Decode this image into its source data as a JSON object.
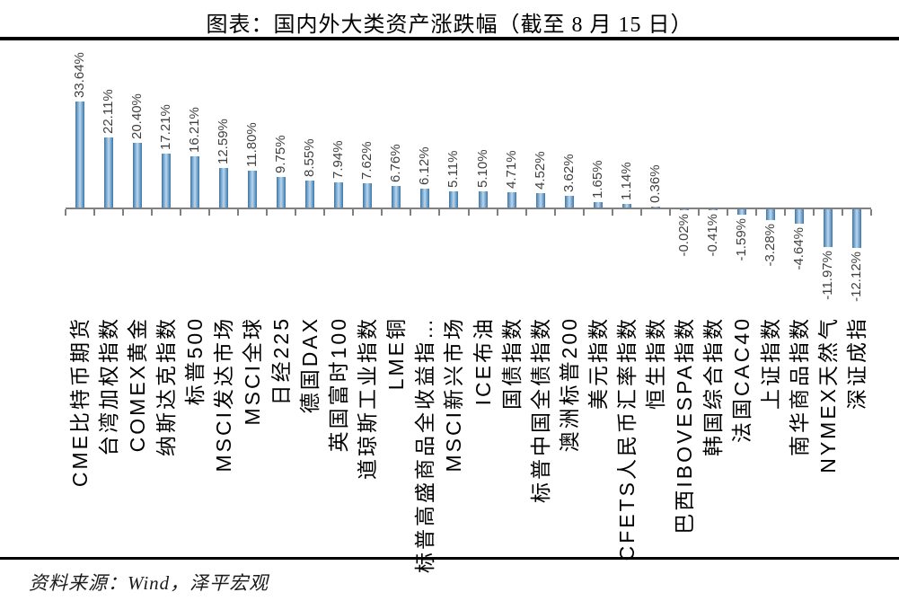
{
  "title": "图表：国内外大类资产涨跌幅（截至 8 月 15 日）",
  "source": "资料来源：Wind，泽平宏观",
  "chart_data": {
    "type": "bar",
    "orientation": "vertical",
    "title": "图表：国内外大类资产涨跌幅（截至 8 月 15 日）",
    "value_suffix": "%",
    "value_decimals": 2,
    "categories": [
      "CME比特币期货",
      "台湾加权指数",
      "COMEX黄金",
      "纳斯达克指数",
      "标普500",
      "MSCI发达市场",
      "MSCI全球",
      "日经225",
      "德国DAX",
      "英国富时100",
      "道琼斯工业指数",
      "LME铜",
      "标普高盛商品全收益指…",
      "MSCI新兴市场",
      "ICE布油",
      "国债指数",
      "标普中国全债指数",
      "澳洲标普200",
      "美元指数",
      "CFETS人民币汇率指数",
      "恒生指数",
      "巴西IBOVESPA指数",
      "韩国综合指数",
      "法国CAC40",
      "上证指数",
      "南华商品指数",
      "NYMEX天然气",
      "深证成指"
    ],
    "values": [
      33.64,
      22.11,
      20.4,
      17.21,
      16.21,
      12.59,
      11.8,
      9.75,
      8.55,
      7.94,
      7.62,
      6.76,
      6.12,
      5.11,
      5.1,
      4.71,
      4.52,
      3.62,
      1.65,
      1.14,
      0.36,
      -0.02,
      -0.41,
      -1.59,
      -3.28,
      -4.64,
      -11.97,
      -12.12
    ],
    "ylim": [
      -15,
      35
    ],
    "grid": false,
    "legend": false,
    "data_labels": "outside-end, rotated 90° counterclockwise",
    "category_labels": "rotated 90° counterclockwise, top-anchored below axis",
    "colors": {
      "bar_edge": "#3d74a6",
      "bar_mid": "#7fadd2",
      "bar_center": "#bcd8ee",
      "axis": "#808080",
      "value_label": "#3f3f3f",
      "category_label": "#000000",
      "rule": "#000000"
    }
  }
}
